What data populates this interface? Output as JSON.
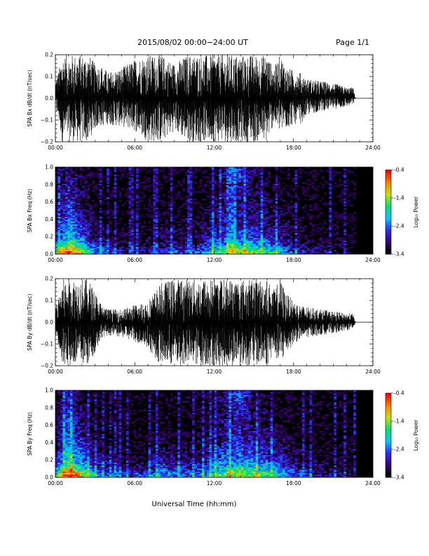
{
  "header": {
    "title": "2015/08/02  00:00−24:00 UT",
    "page": "Page 1/1"
  },
  "x_axis": {
    "label": "Universal Time (hh:mm)",
    "ticks": [
      "00:00",
      "06:00",
      "12:00",
      "18:00",
      "24:00"
    ],
    "range_hours": [
      0,
      24
    ]
  },
  "colorbar": {
    "tick_labels": [
      "-0.4",
      "-1.4",
      "-2.4",
      "-3.4"
    ],
    "range": [
      -3.4,
      -0.4
    ],
    "colormap": [
      "#000000",
      "#3a0070",
      "#2a2aff",
      "#00c8ff",
      "#00e070",
      "#c8e000",
      "#ff8000",
      "#ff0000"
    ]
  },
  "chart_data": [
    {
      "type": "line",
      "ylabel": "SPA Bx dB/dt (nT/sec)",
      "ylim": [
        -0.2,
        0.2
      ],
      "yticks": [
        "0.2",
        "0.1",
        "0.0",
        "−0.1",
        "−0.2"
      ],
      "envelope_x_hours": [
        0,
        0.3,
        0.5,
        1.0,
        1.2,
        1.5,
        2.0,
        2.5,
        3.0,
        3.5,
        4.0,
        5.0,
        6.0,
        7.0,
        8.0,
        9.0,
        10.0,
        11.0,
        12.0,
        12.5,
        13.0,
        14.0,
        15.0,
        15.5,
        16.0,
        16.5,
        17.0,
        17.5,
        18.0,
        18.5,
        19.0,
        20.0,
        21.0,
        22.0,
        22.5,
        22.7,
        24.0
      ],
      "envelope_upper": [
        0.08,
        0.14,
        0.2,
        0.2,
        0.2,
        0.2,
        0.2,
        0.2,
        0.16,
        0.15,
        0.12,
        0.14,
        0.18,
        0.2,
        0.2,
        0.16,
        0.2,
        0.2,
        0.2,
        0.2,
        0.2,
        0.2,
        0.2,
        0.2,
        0.2,
        0.14,
        0.2,
        0.14,
        0.13,
        0.12,
        0.09,
        0.08,
        0.07,
        0.05,
        0.05,
        0.0,
        0.0
      ],
      "envelope_lower": [
        -0.05,
        -0.12,
        -0.2,
        -0.2,
        -0.2,
        -0.2,
        -0.2,
        -0.2,
        -0.14,
        -0.13,
        -0.12,
        -0.13,
        -0.15,
        -0.2,
        -0.2,
        -0.15,
        -0.2,
        -0.2,
        -0.2,
        -0.2,
        -0.2,
        -0.2,
        -0.2,
        -0.2,
        -0.2,
        -0.12,
        -0.16,
        -0.14,
        -0.12,
        -0.12,
        -0.08,
        -0.06,
        -0.05,
        -0.04,
        -0.03,
        0.0,
        0.0
      ],
      "data_end_hours": 22.7
    },
    {
      "type": "heatmap",
      "ylabel": "SPA Bx Freq (Hz)",
      "ylim": [
        0.0,
        1.0
      ],
      "yticks": [
        "1.0",
        "0.8",
        "0.6",
        "0.4",
        "0.2",
        "0.0"
      ],
      "zlabel": "Log₁₀ Power",
      "zlim": [
        -3.4,
        -0.4
      ],
      "time_bins_hours": [
        0,
        1,
        2,
        3,
        4,
        5,
        6,
        7,
        8,
        9,
        10,
        11,
        12,
        13,
        14,
        15,
        16,
        17,
        18,
        19,
        20,
        21,
        22,
        23
      ],
      "freq_bins_hz": [
        0.025,
        0.1,
        0.2,
        0.4,
        0.6,
        0.8,
        0.95
      ],
      "log_power": [
        [
          -1.7,
          -0.6,
          -1.2,
          -2.2,
          -2.6,
          -2.8,
          -2.9,
          -2.9,
          -2.7,
          -2.6,
          -2.7,
          -2.5,
          -1.9,
          -1.6,
          -1.4,
          -1.5,
          -1.8,
          -2.0,
          -2.6,
          -2.8,
          -3.0,
          -3.1,
          -3.2,
          -3.4
        ],
        [
          -2.3,
          -1.4,
          -1.9,
          -2.7,
          -3.0,
          -3.1,
          -3.2,
          -3.2,
          -3.0,
          -2.9,
          -3.0,
          -2.8,
          -2.4,
          -2.1,
          -2.0,
          -2.1,
          -2.3,
          -2.5,
          -3.0,
          -3.1,
          -3.2,
          -3.3,
          -3.3,
          -3.4
        ],
        [
          -2.8,
          -2.0,
          -2.5,
          -3.1,
          -3.3,
          -3.3,
          -3.3,
          -3.3,
          -3.2,
          -3.1,
          -3.2,
          -3.1,
          -2.8,
          -2.6,
          -2.5,
          -2.6,
          -2.8,
          -3.0,
          -3.2,
          -3.3,
          -3.3,
          -3.4,
          -3.4,
          -3.4
        ],
        [
          -3.2,
          -2.4,
          -2.9,
          -3.3,
          -3.4,
          -3.4,
          -3.4,
          -3.4,
          -3.3,
          -3.3,
          -3.3,
          -3.3,
          -3.0,
          -2.9,
          -2.9,
          -3.0,
          -3.1,
          -3.2,
          -3.3,
          -3.4,
          -3.4,
          -3.4,
          -3.4,
          -3.4
        ],
        [
          -3.3,
          -2.6,
          -3.1,
          -3.4,
          -3.4,
          -3.4,
          -3.4,
          -3.4,
          -3.4,
          -3.4,
          -3.4,
          -3.4,
          -3.2,
          -3.0,
          -3.0,
          -3.1,
          -3.2,
          -3.3,
          -3.4,
          -3.4,
          -3.4,
          -3.4,
          -3.4,
          -3.4
        ],
        [
          -3.4,
          -2.8,
          -3.2,
          -3.4,
          -3.4,
          -3.4,
          -3.4,
          -3.4,
          -3.4,
          -3.4,
          -3.4,
          -3.4,
          -3.3,
          -3.1,
          -2.8,
          -3.2,
          -3.3,
          -3.4,
          -3.4,
          -3.4,
          -3.4,
          -3.4,
          -3.4,
          -3.4
        ],
        [
          -3.4,
          -3.0,
          -3.3,
          -3.4,
          -3.4,
          -3.4,
          -3.4,
          -3.4,
          -3.4,
          -3.4,
          -3.4,
          -3.4,
          -3.3,
          -2.9,
          -2.5,
          -3.2,
          -3.4,
          -3.4,
          -3.4,
          -3.4,
          -3.4,
          -3.4,
          -3.4,
          -3.4
        ]
      ]
    },
    {
      "type": "line",
      "ylabel": "SPA By dB/dt (nT/sec)",
      "ylim": [
        -0.2,
        0.2
      ],
      "yticks": [
        "0.2",
        "0.1",
        "0.0",
        "−0.1",
        "−0.2"
      ],
      "envelope_x_hours": [
        0,
        0.3,
        0.5,
        1.0,
        1.5,
        2.0,
        2.5,
        3.0,
        3.5,
        4.0,
        5.0,
        6.0,
        7.0,
        8.0,
        9.0,
        10.0,
        11.0,
        12.0,
        12.5,
        13.0,
        14.0,
        15.0,
        15.5,
        16.0,
        16.5,
        17.0,
        17.5,
        18.0,
        18.5,
        19.0,
        20.0,
        21.0,
        22.0,
        22.5,
        22.7,
        24.0
      ],
      "envelope_upper": [
        0.07,
        0.12,
        0.2,
        0.2,
        0.2,
        0.2,
        0.2,
        0.14,
        0.08,
        0.06,
        0.06,
        0.08,
        0.1,
        0.18,
        0.2,
        0.2,
        0.2,
        0.2,
        0.2,
        0.2,
        0.2,
        0.2,
        0.2,
        0.2,
        0.15,
        0.2,
        0.13,
        0.1,
        0.08,
        0.07,
        0.06,
        0.05,
        0.04,
        0.04,
        0.0,
        0.0
      ],
      "envelope_lower": [
        -0.06,
        -0.12,
        -0.2,
        -0.2,
        -0.2,
        -0.2,
        -0.2,
        -0.14,
        -0.07,
        -0.06,
        -0.07,
        -0.09,
        -0.12,
        -0.2,
        -0.2,
        -0.2,
        -0.2,
        -0.2,
        -0.2,
        -0.2,
        -0.2,
        -0.2,
        -0.2,
        -0.2,
        -0.15,
        -0.2,
        -0.14,
        -0.1,
        -0.08,
        -0.07,
        -0.06,
        -0.05,
        -0.04,
        -0.03,
        0.0,
        0.0
      ],
      "data_end_hours": 22.7
    },
    {
      "type": "heatmap",
      "ylabel": "SPA By Freq (Hz)",
      "ylim": [
        0.0,
        1.0
      ],
      "yticks": [
        "1.0",
        "0.8",
        "0.6",
        "0.4",
        "0.2",
        "0.0"
      ],
      "zlabel": "Log₁₀ Power",
      "zlim": [
        -3.4,
        -0.4
      ],
      "time_bins_hours": [
        0,
        1,
        2,
        3,
        4,
        5,
        6,
        7,
        8,
        9,
        10,
        11,
        12,
        13,
        14,
        15,
        16,
        17,
        18,
        19,
        20,
        21,
        22,
        23
      ],
      "freq_bins_hz": [
        0.025,
        0.1,
        0.2,
        0.4,
        0.6,
        0.8,
        0.95
      ],
      "log_power": [
        [
          -1.8,
          -0.5,
          -1.1,
          -2.1,
          -2.5,
          -2.6,
          -2.6,
          -2.5,
          -2.1,
          -2.3,
          -2.4,
          -2.2,
          -1.8,
          -1.5,
          -1.3,
          -1.4,
          -1.6,
          -2.0,
          -2.4,
          -2.7,
          -2.9,
          -3.0,
          -3.1,
          -3.4
        ],
        [
          -2.4,
          -1.3,
          -1.8,
          -2.6,
          -2.9,
          -3.0,
          -3.0,
          -2.9,
          -2.5,
          -2.7,
          -2.8,
          -2.6,
          -2.3,
          -1.9,
          -1.8,
          -1.9,
          -2.1,
          -2.4,
          -2.8,
          -3.0,
          -3.1,
          -3.2,
          -3.3,
          -3.4
        ],
        [
          -2.9,
          -1.9,
          -2.4,
          -3.0,
          -3.2,
          -3.3,
          -3.3,
          -3.2,
          -2.9,
          -3.0,
          -3.1,
          -3.0,
          -2.7,
          -2.4,
          -2.3,
          -2.4,
          -2.6,
          -2.8,
          -3.1,
          -3.2,
          -3.3,
          -3.4,
          -3.4,
          -3.4
        ],
        [
          -3.2,
          -2.3,
          -2.8,
          -3.3,
          -3.4,
          -3.4,
          -3.4,
          -3.4,
          -3.2,
          -3.3,
          -3.3,
          -3.2,
          -3.0,
          -2.8,
          -2.7,
          -2.8,
          -3.0,
          -3.1,
          -3.3,
          -3.4,
          -3.4,
          -3.4,
          -3.4,
          -3.4
        ],
        [
          -3.3,
          -2.5,
          -3.0,
          -3.4,
          -3.4,
          -3.4,
          -3.4,
          -3.4,
          -3.3,
          -3.4,
          -3.4,
          -3.4,
          -3.2,
          -2.9,
          -2.8,
          -3.0,
          -3.1,
          -3.3,
          -3.4,
          -3.4,
          -3.4,
          -3.4,
          -3.4,
          -3.4
        ],
        [
          -3.4,
          -2.7,
          -3.2,
          -3.4,
          -3.4,
          -3.4,
          -3.4,
          -3.4,
          -3.4,
          -3.4,
          -3.4,
          -3.4,
          -3.3,
          -3.0,
          -2.7,
          -3.1,
          -3.3,
          -3.4,
          -3.4,
          -3.4,
          -3.4,
          -3.4,
          -3.4,
          -3.4
        ],
        [
          -3.4,
          -2.9,
          -3.3,
          -3.4,
          -3.4,
          -3.4,
          -3.4,
          -3.4,
          -3.4,
          -3.4,
          -3.4,
          -3.4,
          -3.3,
          -2.8,
          -2.4,
          -3.2,
          -3.4,
          -3.4,
          -3.4,
          -3.4,
          -3.4,
          -3.4,
          -3.4,
          -3.4
        ]
      ]
    }
  ]
}
